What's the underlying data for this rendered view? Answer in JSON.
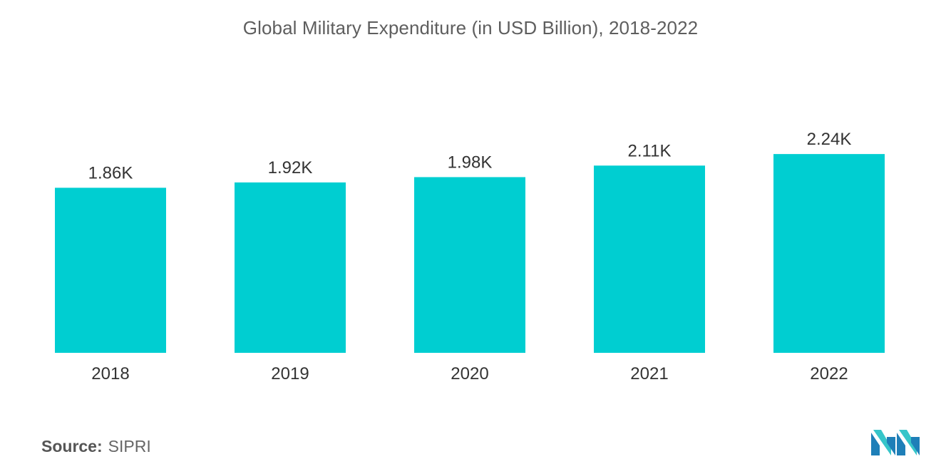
{
  "chart_data": {
    "type": "bar",
    "title": "Global Military Expenditure (in USD Billion), 2018-2022",
    "categories": [
      "2018",
      "2019",
      "2020",
      "2021",
      "2022"
    ],
    "values": [
      1860,
      1920,
      1980,
      2110,
      2240
    ],
    "data_labels": [
      "1.86K",
      "1.92K",
      "1.98K",
      "2.11K",
      "2.24K"
    ],
    "xlabel": "",
    "ylabel": "",
    "ylim": [
      0,
      2400
    ],
    "grid": false,
    "legend": "none",
    "bar_color": "#00ced1"
  },
  "source": {
    "prefix": "Source:",
    "value": "SIPRI"
  },
  "logo": {
    "icon": "mordor-intelligence-logo-icon",
    "colors": [
      "#1e7fb8",
      "#36c5c9"
    ]
  }
}
